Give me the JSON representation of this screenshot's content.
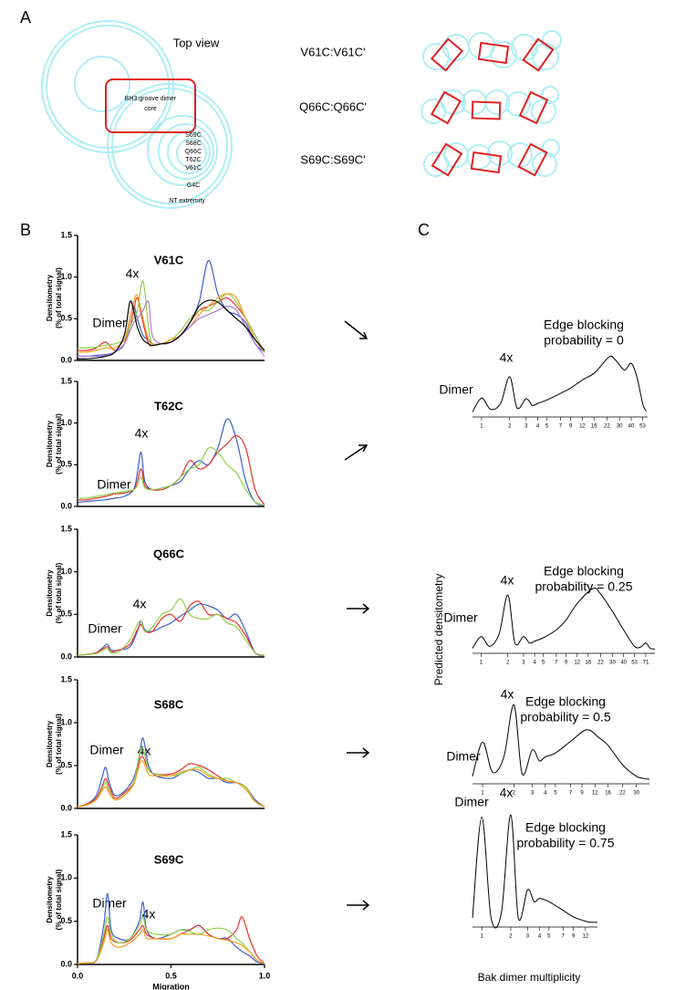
{
  "panel_labels": [
    "A",
    "B",
    "C"
  ],
  "panel_a": {
    "top_view": "Top view",
    "core": [
      "BH3:groove dimer",
      "core"
    ],
    "residues": [
      "S69C",
      "S68C",
      "Q66C",
      "T62C",
      "V61C",
      "G4C"
    ],
    "nt": "NT extremity",
    "dimers": [
      "V61C:V61C'",
      "Q66C:Q66C'",
      "S69C:S69C'"
    ]
  },
  "panel_c": {
    "ylabel": "Predicted densitometry",
    "xlabel": "Bak dimer multiplicity"
  },
  "chart_data": [
    {
      "type": "line",
      "title": "V61C",
      "ylabel": [
        "Densitometry",
        "(% of total signal)"
      ],
      "annotations": [
        "Dimer",
        "4x"
      ],
      "xlim": [
        0,
        1
      ],
      "ylim": [
        0,
        1.5
      ],
      "yticks": [
        {
          "value": 0,
          "label": "0.0"
        },
        0.5,
        {
          "value": 1,
          "label": "1.0"
        },
        1.5
      ],
      "x": [
        0,
        0.05,
        0.1,
        0.15,
        0.2,
        0.25,
        0.28,
        0.3,
        0.32,
        0.35,
        0.38,
        0.4,
        0.45,
        0.5,
        0.55,
        0.6,
        0.65,
        0.7,
        0.75,
        0.8,
        0.85,
        0.9,
        0.95,
        1.0
      ],
      "series": [
        {
          "color": "#3a5fcd",
          "values": [
            0.05,
            0.05,
            0.06,
            0.07,
            0.1,
            0.2,
            0.5,
            0.65,
            0.5,
            0.3,
            0.25,
            0.2,
            0.2,
            0.25,
            0.3,
            0.45,
            0.7,
            1.2,
            0.8,
            0.6,
            0.55,
            0.45,
            0.2,
            0.1
          ]
        },
        {
          "color": "#e8322a",
          "values": [
            0.12,
            0.12,
            0.15,
            0.22,
            0.12,
            0.2,
            0.4,
            0.6,
            0.75,
            0.45,
            0.2,
            0.18,
            0.2,
            0.22,
            0.3,
            0.45,
            0.6,
            0.65,
            0.7,
            0.75,
            0.65,
            0.5,
            0.3,
            0.1
          ]
        },
        {
          "color": "#8ed14a",
          "values": [
            0.15,
            0.15,
            0.16,
            0.18,
            0.2,
            0.25,
            0.4,
            0.5,
            0.6,
            0.95,
            0.4,
            0.2,
            0.2,
            0.25,
            0.35,
            0.5,
            0.6,
            0.6,
            0.7,
            0.8,
            0.7,
            0.5,
            0.3,
            0.1
          ]
        },
        {
          "color": "#f0a020",
          "values": [
            0.1,
            0.1,
            0.12,
            0.15,
            0.15,
            0.25,
            0.5,
            0.7,
            0.78,
            0.5,
            0.25,
            0.2,
            0.2,
            0.25,
            0.3,
            0.4,
            0.55,
            0.65,
            0.75,
            0.8,
            0.75,
            0.5,
            0.25,
            0.1
          ]
        },
        {
          "color": "#b07ad8",
          "values": [
            0.05,
            0.05,
            0.05,
            0.06,
            0.1,
            0.2,
            0.35,
            0.45,
            0.5,
            0.6,
            0.7,
            0.3,
            0.2,
            0.22,
            0.3,
            0.4,
            0.5,
            0.55,
            0.6,
            0.65,
            0.6,
            0.4,
            0.2,
            0.05
          ]
        },
        {
          "color": "#000000",
          "values": [
            0.02,
            0.02,
            0.03,
            0.05,
            0.1,
            0.3,
            0.7,
            0.6,
            0.4,
            0.25,
            0.2,
            0.18,
            0.2,
            0.22,
            0.3,
            0.45,
            0.65,
            0.72,
            0.7,
            0.6,
            0.5,
            0.4,
            0.25,
            0.12
          ]
        }
      ]
    },
    {
      "type": "line",
      "title": "T62C",
      "ylabel": [
        "Densitometry",
        "(% of total signal)"
      ],
      "annotations": [
        "Dimer",
        "4x"
      ],
      "xlim": [
        0,
        1
      ],
      "ylim": [
        0,
        1.5
      ],
      "yticks": [
        {
          "value": 0,
          "label": "0.0"
        },
        0.5,
        {
          "value": 1,
          "label": "1.0"
        },
        1.5
      ],
      "x": [
        0,
        0.05,
        0.1,
        0.15,
        0.2,
        0.25,
        0.3,
        0.32,
        0.34,
        0.36,
        0.4,
        0.45,
        0.5,
        0.55,
        0.6,
        0.65,
        0.7,
        0.75,
        0.8,
        0.85,
        0.9,
        0.95,
        1.0
      ],
      "series": [
        {
          "color": "#3a5fcd",
          "values": [
            0.05,
            0.06,
            0.07,
            0.08,
            0.1,
            0.12,
            0.2,
            0.4,
            0.65,
            0.3,
            0.2,
            0.22,
            0.25,
            0.3,
            0.45,
            0.55,
            0.5,
            0.7,
            1.05,
            0.8,
            0.3,
            0.05,
            0.02
          ]
        },
        {
          "color": "#e8322a",
          "values": [
            0.08,
            0.08,
            0.1,
            0.12,
            0.15,
            0.16,
            0.2,
            0.3,
            0.45,
            0.25,
            0.2,
            0.2,
            0.25,
            0.35,
            0.55,
            0.45,
            0.5,
            0.65,
            0.75,
            0.85,
            0.7,
            0.2,
            0.02
          ]
        },
        {
          "color": "#8ed14a",
          "values": [
            0.1,
            0.1,
            0.12,
            0.14,
            0.16,
            0.18,
            0.2,
            0.25,
            0.35,
            0.22,
            0.2,
            0.22,
            0.25,
            0.35,
            0.45,
            0.5,
            0.7,
            0.65,
            0.5,
            0.4,
            0.2,
            0.05,
            0.02
          ]
        }
      ]
    },
    {
      "type": "line",
      "title": "Q66C",
      "ylabel": [
        "Densitometry",
        "(% of total signal)"
      ],
      "annotations": [
        "Dimer",
        "4x"
      ],
      "xlim": [
        0,
        1
      ],
      "ylim": [
        0,
        1.5
      ],
      "yticks": [
        {
          "value": 0,
          "label": "0.0"
        },
        0.5,
        {
          "value": 1,
          "label": "1.0"
        },
        1.5
      ],
      "x": [
        0,
        0.05,
        0.1,
        0.14,
        0.16,
        0.18,
        0.22,
        0.28,
        0.32,
        0.34,
        0.36,
        0.4,
        0.45,
        0.5,
        0.55,
        0.6,
        0.65,
        0.7,
        0.75,
        0.8,
        0.85,
        0.9,
        0.95,
        1.0
      ],
      "series": [
        {
          "color": "#3a5fcd",
          "values": [
            0.02,
            0.03,
            0.05,
            0.12,
            0.15,
            0.08,
            0.08,
            0.12,
            0.3,
            0.42,
            0.32,
            0.3,
            0.35,
            0.4,
            0.48,
            0.55,
            0.62,
            0.6,
            0.55,
            0.45,
            0.5,
            0.3,
            0.05,
            0.02
          ]
        },
        {
          "color": "#e8322a",
          "values": [
            0.02,
            0.03,
            0.05,
            0.1,
            0.12,
            0.06,
            0.08,
            0.15,
            0.32,
            0.38,
            0.3,
            0.3,
            0.45,
            0.5,
            0.42,
            0.6,
            0.65,
            0.5,
            0.5,
            0.45,
            0.4,
            0.25,
            0.05,
            0.02
          ]
        },
        {
          "color": "#8ed14a",
          "values": [
            0.02,
            0.03,
            0.04,
            0.08,
            0.1,
            0.05,
            0.06,
            0.2,
            0.38,
            0.42,
            0.3,
            0.35,
            0.5,
            0.55,
            0.68,
            0.5,
            0.45,
            0.45,
            0.5,
            0.4,
            0.35,
            0.2,
            0.05,
            0.02
          ]
        }
      ]
    },
    {
      "type": "line",
      "title": "S68C",
      "ylabel": [
        "Densitometry",
        "(% of total signal)"
      ],
      "annotations": [
        "Dimer",
        "4x"
      ],
      "xlim": [
        0,
        1
      ],
      "ylim": [
        0,
        1.5
      ],
      "yticks": [
        {
          "value": 0,
          "label": "0.0"
        },
        0.5,
        {
          "value": 1,
          "label": "1.0"
        },
        1.5
      ],
      "x": [
        0,
        0.05,
        0.1,
        0.13,
        0.15,
        0.17,
        0.2,
        0.25,
        0.3,
        0.33,
        0.35,
        0.38,
        0.42,
        0.5,
        0.55,
        0.6,
        0.65,
        0.7,
        0.75,
        0.8,
        0.85,
        0.9,
        0.95,
        1.0
      ],
      "series": [
        {
          "color": "#3a5fcd",
          "values": [
            0.02,
            0.05,
            0.15,
            0.35,
            0.48,
            0.3,
            0.15,
            0.2,
            0.35,
            0.6,
            0.82,
            0.5,
            0.38,
            0.35,
            0.4,
            0.45,
            0.42,
            0.35,
            0.35,
            0.3,
            0.3,
            0.25,
            0.1,
            0.02
          ]
        },
        {
          "color": "#e8322a",
          "values": [
            0.02,
            0.05,
            0.12,
            0.25,
            0.35,
            0.25,
            0.12,
            0.18,
            0.3,
            0.55,
            0.6,
            0.45,
            0.4,
            0.4,
            0.45,
            0.52,
            0.5,
            0.45,
            0.38,
            0.32,
            0.3,
            0.25,
            0.08,
            0.02
          ]
        },
        {
          "color": "#8ed14a",
          "values": [
            0.02,
            0.04,
            0.1,
            0.22,
            0.3,
            0.2,
            0.1,
            0.15,
            0.3,
            0.62,
            0.7,
            0.45,
            0.4,
            0.38,
            0.4,
            0.45,
            0.48,
            0.4,
            0.35,
            0.35,
            0.3,
            0.25,
            0.08,
            0.02
          ]
        },
        {
          "color": "#f0a020",
          "values": [
            0.02,
            0.04,
            0.1,
            0.2,
            0.25,
            0.18,
            0.1,
            0.15,
            0.28,
            0.5,
            0.55,
            0.4,
            0.38,
            0.38,
            0.42,
            0.45,
            0.45,
            0.38,
            0.35,
            0.32,
            0.3,
            0.22,
            0.08,
            0.02
          ]
        }
      ]
    },
    {
      "type": "line",
      "title": "S69C",
      "ylabel": [
        "Densitometry",
        "(% of total signal)"
      ],
      "xlabel": "Migration",
      "annotations": [
        "Dimer",
        "4x"
      ],
      "xlim": [
        0,
        1
      ],
      "ylim": [
        0,
        1.5
      ],
      "yticks": [
        {
          "value": 0,
          "label": "0.0"
        },
        0.5,
        {
          "value": 1,
          "label": "1.0"
        },
        1.5
      ],
      "xticks": [
        {
          "value": 0,
          "label": "0.0"
        },
        0.5,
        {
          "value": 1,
          "label": "1.0"
        }
      ],
      "x": [
        0,
        0.05,
        0.1,
        0.14,
        0.16,
        0.18,
        0.22,
        0.28,
        0.33,
        0.35,
        0.37,
        0.42,
        0.5,
        0.55,
        0.6,
        0.65,
        0.7,
        0.75,
        0.8,
        0.85,
        0.88,
        0.92,
        0.96,
        1.0
      ],
      "series": [
        {
          "color": "#3a5fcd",
          "values": [
            0.01,
            0.02,
            0.05,
            0.45,
            0.82,
            0.4,
            0.3,
            0.3,
            0.5,
            0.72,
            0.4,
            0.3,
            0.35,
            0.4,
            0.4,
            0.45,
            0.35,
            0.3,
            0.3,
            0.2,
            0.15,
            0.1,
            0.03,
            0.01
          ]
        },
        {
          "color": "#e8322a",
          "values": [
            0.01,
            0.02,
            0.05,
            0.3,
            0.45,
            0.3,
            0.25,
            0.28,
            0.4,
            0.45,
            0.35,
            0.3,
            0.3,
            0.35,
            0.4,
            0.45,
            0.35,
            0.3,
            0.3,
            0.4,
            0.55,
            0.3,
            0.1,
            0.01
          ]
        },
        {
          "color": "#8ed14a",
          "values": [
            0.01,
            0.02,
            0.05,
            0.35,
            0.55,
            0.35,
            0.25,
            0.3,
            0.45,
            0.55,
            0.4,
            0.35,
            0.35,
            0.4,
            0.38,
            0.35,
            0.4,
            0.42,
            0.4,
            0.3,
            0.25,
            0.15,
            0.05,
            0.01
          ]
        },
        {
          "color": "#f0a020",
          "values": [
            0.01,
            0.02,
            0.04,
            0.25,
            0.4,
            0.25,
            0.2,
            0.25,
            0.35,
            0.4,
            0.3,
            0.3,
            0.3,
            0.35,
            0.35,
            0.35,
            0.33,
            0.3,
            0.28,
            0.25,
            0.22,
            0.15,
            0.05,
            0.01
          ]
        }
      ]
    },
    {
      "type": "line",
      "xscale": "log",
      "title": [
        "Edge blocking",
        "probability = 0"
      ],
      "annotations": [
        "Dimer",
        "4x"
      ],
      "color": "#000000",
      "xlim": [
        0.8,
        60
      ],
      "ylim": [
        0,
        1
      ],
      "xticks": [
        1,
        2,
        3,
        4,
        5,
        7,
        9,
        12,
        16,
        22,
        30,
        40,
        53
      ],
      "x": [
        0.8,
        1,
        1.25,
        1.6,
        2,
        2.4,
        3,
        3.5,
        4,
        5,
        7,
        9,
        12,
        16,
        20,
        24,
        28,
        34,
        40,
        46,
        53,
        58
      ],
      "values": [
        0.02,
        0.23,
        0.06,
        0.15,
        0.55,
        0.08,
        0.22,
        0.12,
        0.15,
        0.2,
        0.3,
        0.38,
        0.5,
        0.6,
        0.75,
        0.86,
        0.78,
        0.65,
        0.75,
        0.55,
        0.15,
        0.03
      ]
    },
    {
      "type": "line",
      "xscale": "log",
      "title": [
        "Edge blocking",
        "probability = 0.25"
      ],
      "annotations": [
        "Dimer",
        "4x"
      ],
      "color": "#000000",
      "xlim": [
        0.8,
        90
      ],
      "ylim": [
        0,
        1
      ],
      "xticks": [
        1,
        2,
        3,
        4,
        5,
        7,
        9,
        12,
        16,
        22,
        30,
        40,
        53,
        71
      ],
      "x": [
        0.8,
        1,
        1.25,
        1.6,
        2,
        2.4,
        3,
        3.5,
        4,
        5,
        7,
        9,
        12,
        18,
        22,
        30,
        40,
        53,
        62,
        71,
        80,
        90
      ],
      "values": [
        0.02,
        0.2,
        0.05,
        0.25,
        0.83,
        0.1,
        0.2,
        0.1,
        0.13,
        0.18,
        0.3,
        0.45,
        0.7,
        0.93,
        0.85,
        0.58,
        0.3,
        0.05,
        0.04,
        0.1,
        0.02,
        0.01
      ]
    },
    {
      "type": "line",
      "xscale": "log",
      "title": [
        "Edge blocking",
        "probability = 0.5"
      ],
      "annotations": [
        "Dimer",
        "4x"
      ],
      "color": "#000000",
      "xlim": [
        0.8,
        40
      ],
      "ylim": [
        0,
        1
      ],
      "xticks": [
        1,
        2,
        3,
        4,
        5,
        7,
        9,
        12,
        16,
        22,
        30
      ],
      "x": [
        0.8,
        1,
        1.25,
        1.6,
        2,
        2.4,
        3,
        3.5,
        4,
        5,
        7,
        10,
        13,
        16,
        22,
        30,
        36,
        40
      ],
      "values": [
        0.05,
        0.49,
        0.1,
        0.3,
        0.97,
        0.08,
        0.39,
        0.25,
        0.3,
        0.35,
        0.5,
        0.65,
        0.55,
        0.45,
        0.2,
        0.05,
        0.02,
        0.01
      ]
    },
    {
      "type": "line",
      "xscale": "log",
      "title": [
        "Edge blocking",
        "probability = 0.75"
      ],
      "annotations": [
        "Dimer",
        "4x"
      ],
      "color": "#000000",
      "xlim": [
        0.8,
        16
      ],
      "ylim": [
        0,
        1
      ],
      "xticks": [
        1,
        2,
        3,
        4,
        5,
        7,
        9,
        12
      ],
      "x": [
        0.8,
        1,
        1.25,
        1.6,
        2,
        2.4,
        3,
        3.5,
        4,
        5,
        7,
        9,
        12,
        14,
        16
      ],
      "values": [
        0.05,
        0.98,
        0.05,
        0.1,
        1.0,
        0.05,
        0.31,
        0.2,
        0.23,
        0.2,
        0.12,
        0.06,
        0.02,
        0.01,
        0.01
      ]
    }
  ]
}
